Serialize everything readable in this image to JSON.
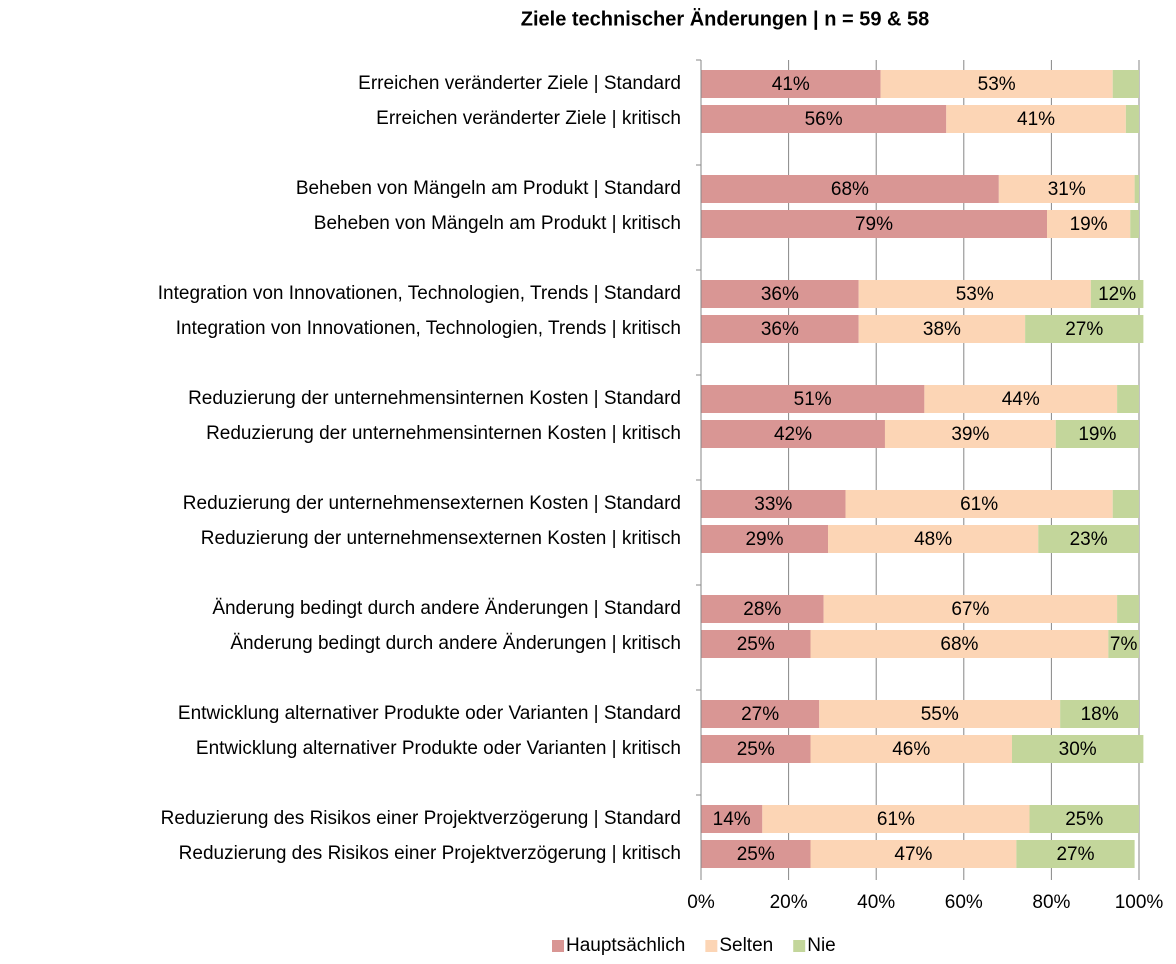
{
  "chart_data": {
    "type": "stacked-barh",
    "title": "Ziele technischer Änderungen | n = 59 & 58",
    "categories": [
      "Erreichen veränderter Ziele | Standard",
      "Erreichen veränderter Ziele | kritisch",
      "Beheben von Mängeln am Produkt | Standard",
      "Beheben von Mängeln am Produkt | kritisch",
      "Integration von Innovationen,  Technologien, Trends | Standard",
      "Integration von Innovationen,  Technologien, Trends | kritisch",
      "Reduzierung der unternehmensinternen Kosten | Standard",
      "Reduzierung der unternehmensinternen Kosten | kritisch",
      "Reduzierung der unternehmensexternen Kosten | Standard",
      "Reduzierung der unternehmensexternen Kosten | kritisch",
      "Änderung bedingt durch andere Änderungen | Standard",
      "Änderung bedingt durch andere Änderungen | kritisch",
      "Entwicklung alternativer Produkte oder Varianten | Standard",
      "Entwicklung alternativer Produkte oder Varianten | kritisch",
      "Reduzierung des Risikos einer Projektverzögerung | Standard",
      "Reduzierung des Risikos einer Projektverzögerung | kritisch"
    ],
    "series": [
      {
        "name": "Hauptsächlich",
        "color": "#d99694",
        "values": [
          41,
          56,
          68,
          79,
          36,
          36,
          51,
          42,
          33,
          29,
          28,
          25,
          27,
          25,
          14,
          25
        ],
        "value_labels": [
          "41%",
          "56%",
          "68%",
          "79%",
          "36%",
          "36%",
          "51%",
          "42%",
          "33%",
          "29%",
          "28%",
          "25%",
          "27%",
          "25%",
          "14%",
          "25%"
        ]
      },
      {
        "name": "Selten",
        "color": "#fcd5b5",
        "values": [
          53,
          41,
          31,
          19,
          53,
          38,
          44,
          39,
          61,
          48,
          67,
          68,
          55,
          46,
          61,
          47
        ],
        "value_labels": [
          "53%",
          "41%",
          "31%",
          "19%",
          "53%",
          "38%",
          "44%",
          "39%",
          "61%",
          "48%",
          "67%",
          "68%",
          "55%",
          "46%",
          "61%",
          "47%"
        ]
      },
      {
        "name": "Nie",
        "color": "#c3d69b",
        "values": [
          6,
          3,
          1,
          2,
          12,
          27,
          5,
          19,
          6,
          23,
          5,
          7,
          18,
          30,
          25,
          27
        ],
        "value_labels": [
          null,
          null,
          null,
          null,
          "12%",
          "27%",
          null,
          "19%",
          null,
          "23%",
          null,
          "7%",
          "18%",
          "30%",
          "25%",
          "27%"
        ]
      }
    ],
    "xlim": [
      0,
      100
    ],
    "xticks": [
      {
        "value": 0,
        "label": "0%"
      },
      {
        "value": 20,
        "label": "20%"
      },
      {
        "value": 40,
        "label": "40%"
      },
      {
        "value": 60,
        "label": "60%"
      },
      {
        "value": 80,
        "label": "80%"
      },
      {
        "value": 100,
        "label": "100%"
      }
    ],
    "grid": true,
    "legend": "bottom"
  }
}
